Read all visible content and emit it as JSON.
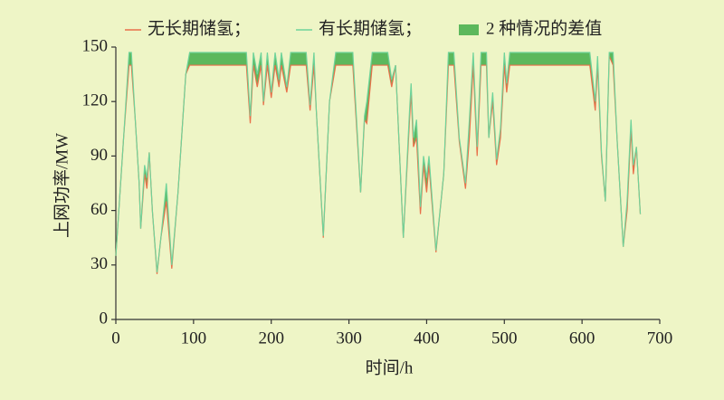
{
  "chart_data": {
    "type": "line",
    "x_label": "时间/h",
    "y_label": "上网功率/MW",
    "x": [
      0,
      10,
      17,
      20,
      25,
      30,
      32,
      37,
      40,
      43,
      47,
      53,
      58,
      65,
      72,
      80,
      90,
      95,
      168,
      173,
      177,
      182,
      187,
      190,
      195,
      200,
      205,
      210,
      213,
      220,
      225,
      245,
      250,
      255,
      258,
      267,
      275,
      283,
      305,
      315,
      320,
      323,
      330,
      350,
      355,
      360,
      370,
      378,
      380,
      383,
      387,
      392,
      396,
      400,
      403,
      412,
      422,
      428,
      435,
      442,
      450,
      455,
      460,
      465,
      470,
      477,
      480,
      485,
      490,
      495,
      500,
      503,
      507,
      610,
      617,
      620,
      625,
      630,
      635,
      640,
      645,
      653,
      658,
      663,
      666,
      670,
      675
    ],
    "series": [
      {
        "name": "无长期储氢；",
        "color": "#e8704a",
        "values": [
          35,
          100,
          140,
          140,
          110,
          75,
          50,
          80,
          72,
          92,
          60,
          25,
          45,
          65,
          28,
          70,
          135,
          140,
          140,
          108,
          140,
          128,
          140,
          118,
          140,
          122,
          140,
          128,
          140,
          125,
          140,
          140,
          115,
          140,
          115,
          45,
          120,
          140,
          140,
          70,
          110,
          108,
          140,
          140,
          128,
          140,
          45,
          110,
          125,
          95,
          100,
          58,
          85,
          70,
          85,
          37,
          80,
          140,
          140,
          98,
          72,
          100,
          140,
          90,
          140,
          140,
          100,
          120,
          85,
          100,
          140,
          125,
          140,
          140,
          115,
          140,
          90,
          65,
          145,
          140,
          100,
          40,
          60,
          105,
          80,
          95,
          58
        ]
      },
      {
        "name": "有长期储氢；",
        "color": "#6fd39a",
        "values": [
          35,
          100,
          147,
          147,
          110,
          75,
          50,
          85,
          78,
          92,
          60,
          26,
          45,
          75,
          30,
          70,
          135,
          147,
          147,
          112,
          147,
          135,
          147,
          120,
          147,
          125,
          147,
          132,
          147,
          128,
          147,
          147,
          118,
          147,
          115,
          46,
          120,
          147,
          147,
          70,
          112,
          120,
          147,
          147,
          132,
          140,
          45,
          115,
          130,
          100,
          110,
          62,
          90,
          78,
          90,
          38,
          80,
          147,
          147,
          100,
          75,
          110,
          147,
          95,
          147,
          147,
          100,
          125,
          88,
          105,
          147,
          130,
          147,
          147,
          120,
          145,
          92,
          65,
          147,
          147,
          100,
          40,
          65,
          110,
          85,
          95,
          58
        ]
      }
    ],
    "difference": {
      "name": "2 种情况的差值",
      "color": "#5cb85c"
    },
    "xlim": [
      0,
      700
    ],
    "xticks": [
      0,
      100,
      200,
      300,
      400,
      500,
      600,
      700
    ],
    "ylim": [
      0,
      150
    ],
    "yticks": [
      0,
      30,
      60,
      90,
      120,
      150
    ]
  }
}
